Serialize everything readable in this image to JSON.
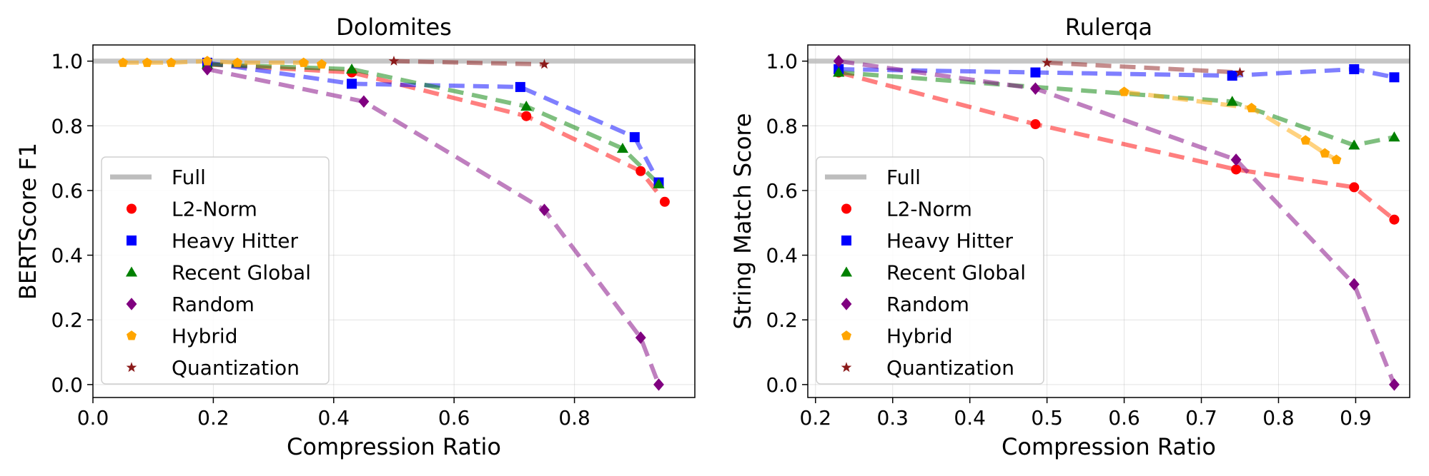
{
  "legend_labels": [
    "Full",
    "L2-Norm",
    "Heavy Hitter",
    "Recent Global",
    "Random",
    "Hybrid",
    "Quantization"
  ],
  "colors": {
    "Full": "#bdbdbd",
    "L2-Norm": "#ff0000",
    "Heavy Hitter": "#0000ff",
    "Recent Global": "#008000",
    "Random": "#800080",
    "Hybrid": "#ffa500",
    "Quantization": "#8b1a1a"
  },
  "markers": {
    "L2-Norm": "circle",
    "Heavy Hitter": "square",
    "Recent Global": "triangle",
    "Random": "diamond",
    "Hybrid": "pentagon",
    "Quantization": "star"
  },
  "chart_data": [
    {
      "type": "line",
      "title": "Dolomites",
      "xlabel": "Compression Ratio",
      "ylabel": "BERTScore F1",
      "xlim": [
        0.0,
        1.0
      ],
      "ylim": [
        -0.04,
        1.05
      ],
      "xticks": [
        0.0,
        0.2,
        0.4,
        0.6,
        0.8
      ],
      "xtick_labels": [
        "0.0",
        "0.2",
        "0.4",
        "0.6",
        "0.8"
      ],
      "yticks": [
        0.0,
        0.2,
        0.4,
        0.6,
        0.8,
        1.0
      ],
      "ytick_labels": [
        "0.0",
        "0.2",
        "0.4",
        "0.6",
        "0.8",
        "1.0"
      ],
      "grid": true,
      "legend_position": "lower-left",
      "full_reference": 1.0,
      "series": [
        {
          "name": "L2-Norm",
          "x": [
            0.19,
            0.43,
            0.72,
            0.91,
            0.95
          ],
          "y": [
            0.99,
            0.965,
            0.83,
            0.66,
            0.565
          ]
        },
        {
          "name": "Heavy Hitter",
          "x": [
            0.19,
            0.43,
            0.71,
            0.9,
            0.94
          ],
          "y": [
            0.995,
            0.93,
            0.92,
            0.765,
            0.625
          ]
        },
        {
          "name": "Recent Global",
          "x": [
            0.19,
            0.43,
            0.72,
            0.88,
            0.94
          ],
          "y": [
            0.99,
            0.975,
            0.86,
            0.73,
            0.62
          ]
        },
        {
          "name": "Random",
          "x": [
            0.19,
            0.45,
            0.75,
            0.91,
            0.94
          ],
          "y": [
            0.975,
            0.875,
            0.54,
            0.145,
            0.0
          ]
        },
        {
          "name": "Hybrid",
          "x": [
            0.05,
            0.09,
            0.13,
            0.19,
            0.24,
            0.35,
            0.38
          ],
          "y": [
            0.995,
            0.995,
            0.995,
            1.0,
            0.995,
            0.995,
            0.99
          ]
        },
        {
          "name": "Quantization",
          "x": [
            0.5,
            0.75
          ],
          "y": [
            1.0,
            0.99
          ]
        }
      ]
    },
    {
      "type": "line",
      "title": "Rulerqa",
      "xlabel": "Compression Ratio",
      "ylabel": "String Match Score",
      "xlim": [
        0.19,
        0.97
      ],
      "ylim": [
        -0.04,
        1.05
      ],
      "xticks": [
        0.2,
        0.3,
        0.4,
        0.5,
        0.6,
        0.7,
        0.8,
        0.9
      ],
      "xtick_labels": [
        "0.2",
        "0.3",
        "0.4",
        "0.5",
        "0.6",
        "0.7",
        "0.8",
        "0.9"
      ],
      "yticks": [
        0.0,
        0.2,
        0.4,
        0.6,
        0.8,
        1.0
      ],
      "ytick_labels": [
        "0.0",
        "0.2",
        "0.4",
        "0.6",
        "0.8",
        "1.0"
      ],
      "grid": true,
      "legend_position": "lower-left",
      "full_reference": 1.0,
      "series": [
        {
          "name": "L2-Norm",
          "x": [
            0.23,
            0.485,
            0.745,
            0.898,
            0.95
          ],
          "y": [
            0.965,
            0.805,
            0.665,
            0.61,
            0.51
          ]
        },
        {
          "name": "Heavy Hitter",
          "x": [
            0.23,
            0.485,
            0.74,
            0.898,
            0.95
          ],
          "y": [
            0.975,
            0.965,
            0.955,
            0.975,
            0.95
          ]
        },
        {
          "name": "Recent Global",
          "x": [
            0.23,
            0.74,
            0.898,
            0.95
          ],
          "y": [
            0.965,
            0.875,
            0.74,
            0.765
          ]
        },
        {
          "name": "Random",
          "x": [
            0.23,
            0.485,
            0.745,
            0.898,
            0.95
          ],
          "y": [
            1.0,
            0.915,
            0.695,
            0.31,
            0.0
          ]
        },
        {
          "name": "Hybrid",
          "x": [
            0.6,
            0.765,
            0.835,
            0.86,
            0.875
          ],
          "y": [
            0.905,
            0.855,
            0.755,
            0.715,
            0.695
          ]
        },
        {
          "name": "Quantization",
          "x": [
            0.5,
            0.75
          ],
          "y": [
            0.995,
            0.965
          ]
        }
      ]
    }
  ]
}
